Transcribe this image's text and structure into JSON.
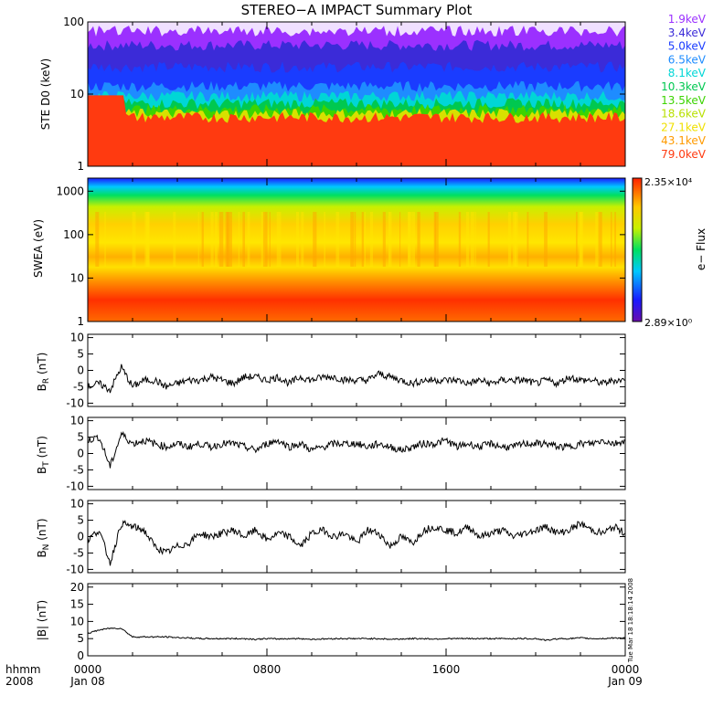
{
  "title": "STEREO−A IMPACT Summary Plot",
  "footer": {
    "left_top": "hhmm",
    "left_bottom": "2008"
  },
  "time_axis": {
    "ticks": [
      {
        "hhmm": "0000",
        "date": "Jan 08",
        "hours": 0
      },
      {
        "hhmm": "0800",
        "date": "",
        "hours": 8
      },
      {
        "hhmm": "1600",
        "date": "",
        "hours": 16
      },
      {
        "hhmm": "0000",
        "date": "Jan 09",
        "hours": 24
      }
    ],
    "minor_step_hours": 2
  },
  "panels": {
    "ste": {
      "ylabel": "STE D0 (keV)",
      "ticks": [
        "1",
        "10",
        "100"
      ],
      "ylim": [
        1,
        100
      ],
      "scale": "log",
      "legend": [
        {
          "label": "1.9keV",
          "color": "#9b30ff"
        },
        {
          "label": "3.4keV",
          "color": "#3b2bd8"
        },
        {
          "label": "5.0keV",
          "color": "#1a3cff"
        },
        {
          "label": "6.5keV",
          "color": "#1e8cff"
        },
        {
          "label": "8.1keV",
          "color": "#00d6d6"
        },
        {
          "label": "10.3keV",
          "color": "#00c850"
        },
        {
          "label": "13.5keV",
          "color": "#3cd400"
        },
        {
          "label": "18.6keV",
          "color": "#b8e000"
        },
        {
          "label": "27.1keV",
          "color": "#f0e000"
        },
        {
          "label": "43.1keV",
          "color": "#ff9a00"
        },
        {
          "label": "79.0keV",
          "color": "#ff3a10"
        }
      ]
    },
    "swea": {
      "ylabel": "SWEA (eV)",
      "ticks": [
        "1",
        "10",
        "100",
        "1000"
      ],
      "ylim": [
        1,
        2000
      ],
      "scale": "log",
      "colorbar": {
        "label": "e− Flux",
        "max_label": "2.35×10⁴",
        "min_label": "2.89×10⁰"
      }
    },
    "br": {
      "ylabel_main": "B",
      "ylabel_sub": "R",
      "ylabel_unit": " (nT)",
      "ticks": [
        "-10",
        "-5",
        "0",
        "5",
        "10"
      ],
      "ylim": [
        -11,
        11
      ]
    },
    "bt": {
      "ylabel_main": "B",
      "ylabel_sub": "T",
      "ylabel_unit": " (nT)",
      "ticks": [
        "-10",
        "-5",
        "0",
        "5",
        "10"
      ],
      "ylim": [
        -11,
        11
      ]
    },
    "bn": {
      "ylabel_main": "B",
      "ylabel_sub": "N",
      "ylabel_unit": " (nT)",
      "ticks": [
        "-10",
        "-5",
        "0",
        "5",
        "10"
      ],
      "ylim": [
        -11,
        11
      ]
    },
    "bmag": {
      "ylabel": "|B| (nT)",
      "ticks": [
        "0",
        "5",
        "10",
        "15",
        "20"
      ],
      "ylim": [
        0,
        21
      ],
      "timestamp": "Tue Mar 18 18:18:14 2008"
    }
  },
  "chart_data": [
    {
      "type": "line",
      "title": "",
      "ylabel": "B_R (nT)",
      "x_hours": [
        0,
        0.5,
        1,
        1.5,
        2,
        2.5,
        3,
        3.5,
        4,
        4.5,
        5,
        5.5,
        6,
        6.5,
        7,
        7.5,
        8,
        8.5,
        9,
        9.5,
        10,
        10.5,
        11,
        11.5,
        12,
        12.5,
        13,
        13.5,
        14,
        14.5,
        15,
        15.5,
        16,
        16.5,
        17,
        17.5,
        18,
        18.5,
        19,
        19.5,
        20,
        20.5,
        21,
        21.5,
        22,
        22.5,
        23,
        23.5,
        24
      ],
      "values": [
        -5,
        -4,
        -6,
        1,
        -5,
        -3,
        -3,
        -5,
        -4,
        -3,
        -3,
        -2,
        -3,
        -4,
        -2,
        -2,
        -3,
        -2,
        -4,
        -2,
        -3,
        -2,
        -2,
        -3,
        -3,
        -3,
        -1,
        -2,
        -3,
        -4,
        -3,
        -3,
        -3,
        -3,
        -4,
        -3,
        -4,
        -3,
        -3,
        -3,
        -4,
        -3,
        -4,
        -2,
        -3,
        -3,
        -4,
        -3,
        -3
      ],
      "ylim": [
        -11,
        11
      ]
    },
    {
      "type": "line",
      "title": "",
      "ylabel": "B_T (nT)",
      "x_hours": [
        0,
        0.5,
        1,
        1.5,
        2,
        2.5,
        3,
        3.5,
        4,
        4.5,
        5,
        5.5,
        6,
        6.5,
        7,
        7.5,
        8,
        8.5,
        9,
        9.5,
        10,
        10.5,
        11,
        11.5,
        12,
        12.5,
        13,
        13.5,
        14,
        14.5,
        15,
        15.5,
        16,
        16.5,
        17,
        17.5,
        18,
        18.5,
        19,
        19.5,
        20,
        20.5,
        21,
        21.5,
        22,
        22.5,
        23,
        23.5,
        24
      ],
      "values": [
        4,
        5,
        -4,
        6,
        3,
        4,
        3,
        2,
        3,
        2,
        3,
        2,
        3,
        3,
        2,
        1,
        3,
        4,
        2,
        3,
        1,
        2,
        3,
        3,
        3,
        2,
        3,
        2,
        1,
        2,
        3,
        3,
        4,
        2,
        3,
        2,
        3,
        2,
        2,
        3,
        3,
        3,
        2,
        2,
        3,
        3,
        4,
        3,
        4
      ],
      "ylim": [
        -11,
        11
      ]
    },
    {
      "type": "line",
      "title": "",
      "ylabel": "B_N (nT)",
      "x_hours": [
        0,
        0.5,
        1,
        1.5,
        2,
        2.5,
        3,
        3.5,
        4,
        4.5,
        5,
        5.5,
        6,
        6.5,
        7,
        7.5,
        8,
        8.5,
        9,
        9.5,
        10,
        10.5,
        11,
        11.5,
        12,
        12.5,
        13,
        13.5,
        14,
        14.5,
        15,
        15.5,
        16,
        16.5,
        17,
        17.5,
        18,
        18.5,
        19,
        19.5,
        20,
        20.5,
        21,
        21.5,
        22,
        22.5,
        23,
        23.5,
        24
      ],
      "values": [
        -1,
        2,
        -8,
        4,
        3,
        2,
        -3,
        -5,
        -3,
        -2,
        1,
        0,
        1,
        2,
        0,
        2,
        -1,
        1,
        0,
        -3,
        1,
        2,
        0,
        1,
        -2,
        2,
        1,
        -3,
        0,
        -2,
        2,
        3,
        2,
        1,
        3,
        0,
        1,
        2,
        0,
        1,
        2,
        3,
        1,
        2,
        4,
        2,
        1,
        3,
        1
      ],
      "ylim": [
        -11,
        11
      ]
    },
    {
      "type": "line",
      "title": "",
      "ylabel": "|B| (nT)",
      "x_hours": [
        0,
        0.5,
        1,
        1.5,
        2,
        2.5,
        3,
        3.5,
        4,
        4.5,
        5,
        5.5,
        6,
        6.5,
        7,
        7.5,
        8,
        8.5,
        9,
        9.5,
        10,
        10.5,
        11,
        11.5,
        12,
        12.5,
        13,
        13.5,
        14,
        14.5,
        15,
        15.5,
        16,
        16.5,
        17,
        17.5,
        18,
        18.5,
        19,
        19.5,
        20,
        20.5,
        21,
        21.5,
        22,
        22.5,
        23,
        23.5,
        24
      ],
      "values": [
        6.5,
        7.5,
        8,
        8,
        5.5,
        5.5,
        5.5,
        5.5,
        5.3,
        5.2,
        5,
        5,
        5,
        5,
        5,
        4.8,
        5,
        4.9,
        5,
        5,
        4.8,
        4.9,
        5,
        5,
        5,
        5,
        5,
        4.8,
        4.9,
        5,
        5,
        4.9,
        5,
        5,
        5,
        5,
        5,
        5,
        5,
        5,
        5,
        4.5,
        5,
        5,
        5.2,
        5,
        5,
        5.2,
        5.2
      ],
      "ylim": [
        0,
        21
      ]
    }
  ]
}
